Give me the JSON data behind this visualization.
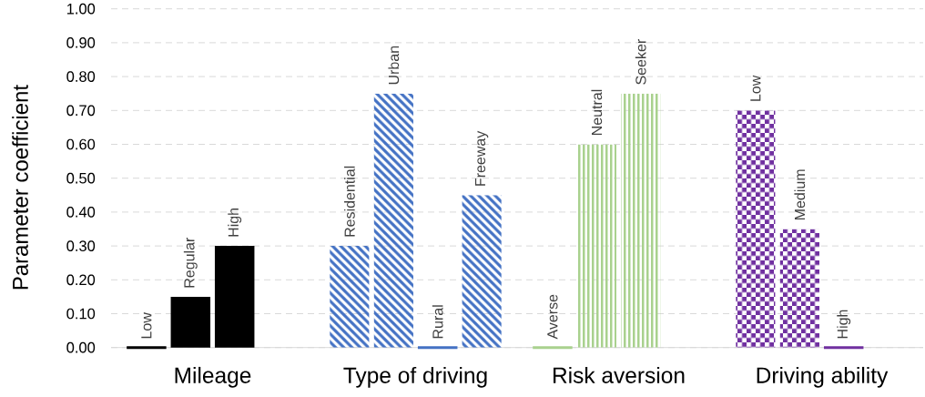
{
  "chart_data": {
    "type": "bar",
    "ylabel": "Parameter coefficient",
    "categories": [
      "Mileage",
      "Type of driving",
      "Risk aversion",
      "Driving ability"
    ],
    "series": [
      {
        "colors": [
          "#000000",
          "#4472c4",
          "#a9d18e",
          "#7030a0"
        ],
        "values": [
          0,
          0.3,
          0,
          0.7
        ],
        "value_labels": [
          "Low",
          "Residential",
          "Averse",
          "Low"
        ]
      },
      {
        "colors": [
          "#000000",
          "#4472c4",
          "#a9d18e",
          "#7030a0"
        ],
        "values": [
          0.15,
          0.75,
          0.6,
          0.35
        ],
        "value_labels": [
          "Regular",
          "Urban",
          "Neutral",
          "Medium"
        ]
      },
      {
        "colors": [
          "#000000",
          "#4472c4",
          "#a9d18e",
          "#7030a0"
        ],
        "values": [
          0.3,
          0,
          0.75,
          0
        ],
        "value_labels": [
          "High",
          "Rural",
          "Seeker",
          "High"
        ]
      },
      {
        "colors": [
          "#000000",
          "#4472c4",
          "#a9d18e",
          "#7030a0"
        ],
        "values": [
          null,
          0.45,
          null,
          null
        ],
        "value_labels": [
          null,
          "Freeway",
          null,
          null
        ]
      }
    ],
    "ylim": [
      0,
      1
    ],
    "yticks": [
      {
        "value": 0,
        "label": "0.00"
      },
      {
        "value": 0.1,
        "label": "0.10"
      },
      {
        "value": 0.2,
        "label": "0.20"
      },
      {
        "value": 0.3,
        "label": "0.30"
      },
      {
        "value": 0.4,
        "label": "0.40"
      },
      {
        "value": 0.5,
        "label": "0.50"
      },
      {
        "value": 0.6,
        "label": "0.60"
      },
      {
        "value": 0.7,
        "label": "0.70"
      },
      {
        "value": 0.8,
        "label": "0.80"
      },
      {
        "value": 0.9,
        "label": "0.90"
      },
      {
        "value": 1,
        "label": "1.00"
      }
    ],
    "grid": "y"
  }
}
